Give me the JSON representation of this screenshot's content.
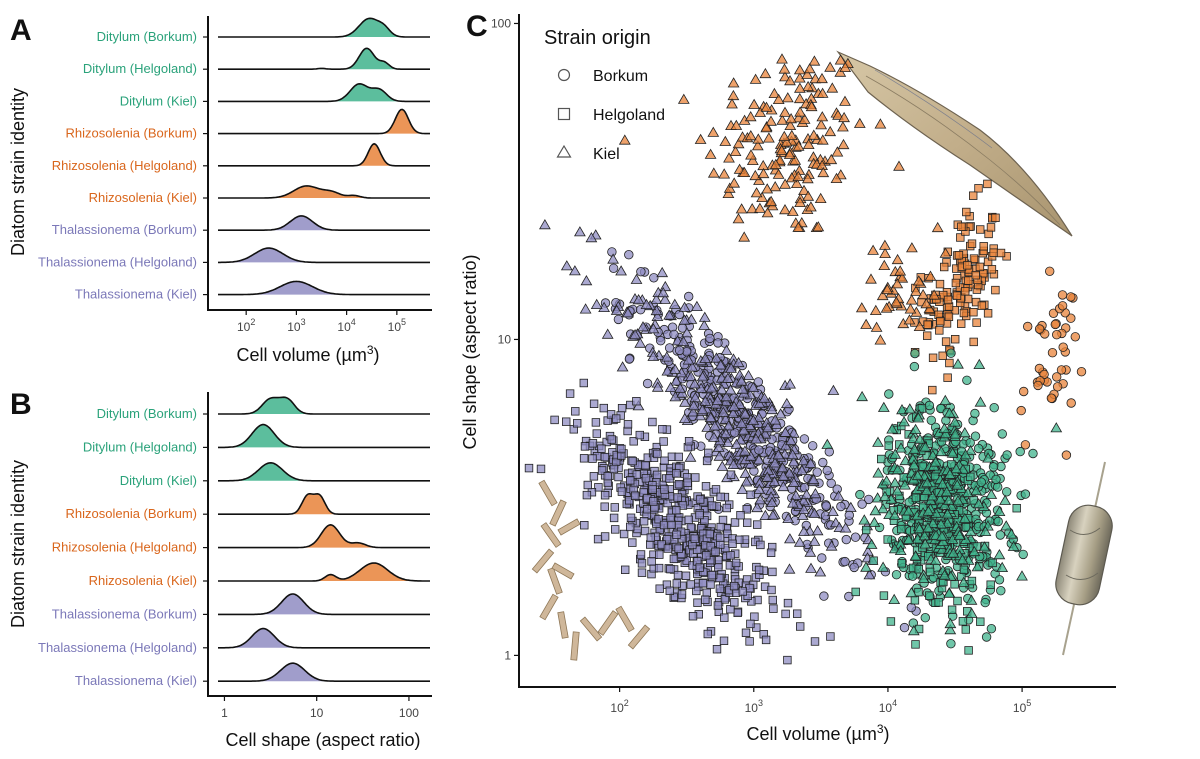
{
  "colors": {
    "Ditylum": "#40b38c",
    "Rhizosolenia": "#e8833a",
    "Thalassionema": "#8f8cc2",
    "Ditylum_text": "#2aa27a",
    "Rhizosolenia_text": "#d9661c",
    "Thalassionema_text": "#7b78b8"
  },
  "chart_data": [
    {
      "panel": "A",
      "type": "ridgeline",
      "ylabel": "Diatom strain identity",
      "xlabel_main": "Cell volume (µm",
      "xlabel_sup": "3",
      "xlabel_end": ")",
      "xscale": "log",
      "xlim_log10": [
        1.2,
        5.7
      ],
      "ticks": [
        {
          "base": "10",
          "exp": "2",
          "value_log10": 2
        },
        {
          "base": "10",
          "exp": "3",
          "value_log10": 3
        },
        {
          "base": "10",
          "exp": "4",
          "value_log10": 4
        },
        {
          "base": "10",
          "exp": "5",
          "value_log10": 5
        }
      ],
      "rows": [
        {
          "label": "Ditylum (Borkum)",
          "genus": "Ditylum",
          "peaks": [
            {
              "mu": 4.45,
              "sd": 0.2,
              "w": 1
            },
            {
              "mu": 4.75,
              "sd": 0.12,
              "w": 0.35
            }
          ],
          "height": 0.85
        },
        {
          "label": "Ditylum (Helgoland)",
          "genus": "Ditylum",
          "peaks": [
            {
              "mu": 4.4,
              "sd": 0.15,
              "w": 1
            },
            {
              "mu": 4.75,
              "sd": 0.1,
              "w": 0.3
            },
            {
              "mu": 3.5,
              "sd": 0.08,
              "w": 0.04
            }
          ],
          "height": 0.95
        },
        {
          "label": "Ditylum (Kiel)",
          "genus": "Ditylum",
          "peaks": [
            {
              "mu": 4.25,
              "sd": 0.18,
              "w": 1
            },
            {
              "mu": 4.65,
              "sd": 0.15,
              "w": 0.65
            }
          ],
          "height": 0.8
        },
        {
          "label": "Rhizosolenia (Borkum)",
          "genus": "Rhizosolenia",
          "peaks": [
            {
              "mu": 5.1,
              "sd": 0.13,
              "w": 1
            }
          ],
          "height": 1.1
        },
        {
          "label": "Rhizosolenia (Helgoland)",
          "genus": "Rhizosolenia",
          "peaks": [
            {
              "mu": 4.55,
              "sd": 0.12,
              "w": 1
            }
          ],
          "height": 1.0
        },
        {
          "label": "Rhizosolenia (Kiel)",
          "genus": "Rhizosolenia",
          "peaks": [
            {
              "mu": 3.2,
              "sd": 0.25,
              "w": 1
            },
            {
              "mu": 3.7,
              "sd": 0.18,
              "w": 0.45
            },
            {
              "mu": 4.15,
              "sd": 0.12,
              "w": 0.2
            }
          ],
          "height": 0.55
        },
        {
          "label": "Thalassionema (Borkum)",
          "genus": "Thalassionema",
          "peaks": [
            {
              "mu": 3.1,
              "sd": 0.22,
              "w": 1
            }
          ],
          "height": 0.65
        },
        {
          "label": "Thalassionema (Helgoland)",
          "genus": "Thalassionema",
          "peaks": [
            {
              "mu": 2.45,
              "sd": 0.28,
              "w": 1
            }
          ],
          "height": 0.65
        },
        {
          "label": "Thalassionema (Kiel)",
          "genus": "Thalassionema",
          "peaks": [
            {
              "mu": 3.0,
              "sd": 0.32,
              "w": 1
            }
          ],
          "height": 0.6
        }
      ]
    },
    {
      "panel": "B",
      "type": "ridgeline",
      "ylabel": "Diatom strain identity",
      "xlabel_main": "Cell shape (aspect ratio)",
      "xscale": "log",
      "xlim_log10": [
        -0.2,
        2.25
      ],
      "ticks": [
        {
          "base": "1",
          "value_log10": 0
        },
        {
          "base": "10",
          "value_log10": 1
        },
        {
          "base": "100",
          "value_log10": 2
        }
      ],
      "rows": [
        {
          "label": "Ditylum (Borkum)",
          "genus": "Ditylum",
          "peaks": [
            {
              "mu": 0.5,
              "sd": 0.09,
              "w": 1
            },
            {
              "mu": 0.68,
              "sd": 0.08,
              "w": 0.95
            }
          ],
          "height": 0.7
        },
        {
          "label": "Ditylum (Helgoland)",
          "genus": "Ditylum",
          "peaks": [
            {
              "mu": 0.42,
              "sd": 0.12,
              "w": 1
            }
          ],
          "height": 0.95
        },
        {
          "label": "Ditylum (Kiel)",
          "genus": "Ditylum",
          "peaks": [
            {
              "mu": 0.5,
              "sd": 0.13,
              "w": 1
            }
          ],
          "height": 0.75
        },
        {
          "label": "Rhizosolenia (Borkum)",
          "genus": "Rhizosolenia",
          "peaks": [
            {
              "mu": 0.9,
              "sd": 0.06,
              "w": 1
            },
            {
              "mu": 1.03,
              "sd": 0.06,
              "w": 1
            }
          ],
          "height": 0.85
        },
        {
          "label": "Rhizosolenia (Helgoland)",
          "genus": "Rhizosolenia",
          "peaks": [
            {
              "mu": 1.15,
              "sd": 0.1,
              "w": 1
            },
            {
              "mu": 1.45,
              "sd": 0.08,
              "w": 0.2
            }
          ],
          "height": 0.95
        },
        {
          "label": "Rhizosolenia (Kiel)",
          "genus": "Rhizosolenia",
          "peaks": [
            {
              "mu": 1.15,
              "sd": 0.06,
              "w": 0.35
            },
            {
              "mu": 1.62,
              "sd": 0.15,
              "w": 1
            }
          ],
          "height": 0.75
        },
        {
          "label": "Thalassionema (Borkum)",
          "genus": "Thalassionema",
          "peaks": [
            {
              "mu": 0.74,
              "sd": 0.12,
              "w": 1
            }
          ],
          "height": 0.85
        },
        {
          "label": "Thalassionema (Helgoland)",
          "genus": "Thalassionema",
          "peaks": [
            {
              "mu": 0.42,
              "sd": 0.12,
              "w": 1
            }
          ],
          "height": 0.8
        },
        {
          "label": "Thalassionema (Kiel)",
          "genus": "Thalassionema",
          "peaks": [
            {
              "mu": 0.74,
              "sd": 0.13,
              "w": 1
            }
          ],
          "height": 0.75
        }
      ]
    },
    {
      "panel": "C",
      "type": "scatter",
      "xlabel_main": "Cell volume (µm",
      "xlabel_sup": "3",
      "xlabel_end": ")",
      "ylabel": "Cell shape (aspect ratio)",
      "xscale": "log",
      "yscale": "log",
      "xlim_log10": [
        1.25,
        5.7
      ],
      "ylim_log10": [
        -0.1,
        2.03
      ],
      "xticks": [
        {
          "base": "10",
          "exp": "2",
          "value_log10": 2
        },
        {
          "base": "10",
          "exp": "3",
          "value_log10": 3
        },
        {
          "base": "10",
          "exp": "4",
          "value_log10": 4
        },
        {
          "base": "10",
          "exp": "5",
          "value_log10": 5
        }
      ],
      "yticks": [
        {
          "label": "1",
          "value_log10": 0
        },
        {
          "label": "10",
          "value_log10": 1
        },
        {
          "label": "100",
          "value_log10": 2
        }
      ],
      "legend": {
        "title": "Strain origin",
        "entries": [
          {
            "label": "Borkum",
            "shape": "circle"
          },
          {
            "label": "Helgoland",
            "shape": "square"
          },
          {
            "label": "Kiel",
            "shape": "triangle"
          }
        ]
      },
      "clusters": [
        {
          "genus": "Rhizosolenia",
          "origin": "Kiel",
          "shape": "triangle",
          "n": 170,
          "cx": 3.25,
          "cy": 1.62,
          "sx": 0.3,
          "sy": 0.16,
          "rho": 0.1
        },
        {
          "genus": "Rhizosolenia",
          "origin": "Helgoland",
          "shape": "square",
          "n": 140,
          "cx": 4.55,
          "cy": 1.17,
          "sx": 0.14,
          "sy": 0.12,
          "rho": 0.4
        },
        {
          "genus": "Rhizosolenia",
          "origin": "Kiel",
          "shape": "triangle",
          "n": 45,
          "cx": 4.1,
          "cy": 1.17,
          "sx": 0.14,
          "sy": 0.08,
          "rho": 0.2
        },
        {
          "genus": "Rhizosolenia",
          "origin": "Borkum",
          "shape": "circle",
          "n": 45,
          "cx": 5.22,
          "cy": 0.93,
          "sx": 0.12,
          "sy": 0.12,
          "rho": 0.3
        },
        {
          "genus": "Thalassionema",
          "origin": "Borkum",
          "shape": "circle",
          "n": 380,
          "cx": 2.95,
          "cy": 0.72,
          "sx": 0.42,
          "sy": 0.21,
          "rho": -0.9
        },
        {
          "genus": "Thalassionema",
          "origin": "Kiel",
          "shape": "triangle",
          "n": 320,
          "cx": 2.85,
          "cy": 0.75,
          "sx": 0.45,
          "sy": 0.22,
          "rho": -0.85
        },
        {
          "genus": "Thalassionema",
          "origin": "Helgoland",
          "shape": "square",
          "n": 560,
          "cx": 2.45,
          "cy": 0.42,
          "sx": 0.35,
          "sy": 0.17,
          "rho": -0.75
        },
        {
          "genus": "Ditylum",
          "origin": "Borkum",
          "shape": "circle",
          "n": 380,
          "cx": 4.45,
          "cy": 0.5,
          "sx": 0.22,
          "sy": 0.16,
          "rho": -0.1
        },
        {
          "genus": "Ditylum",
          "origin": "Helgoland",
          "shape": "square",
          "n": 170,
          "cx": 4.35,
          "cy": 0.42,
          "sx": 0.22,
          "sy": 0.15,
          "rho": -0.1
        },
        {
          "genus": "Ditylum",
          "origin": "Kiel",
          "shape": "triangle",
          "n": 200,
          "cx": 4.35,
          "cy": 0.48,
          "sx": 0.25,
          "sy": 0.17,
          "rho": -0.2
        }
      ]
    }
  ]
}
